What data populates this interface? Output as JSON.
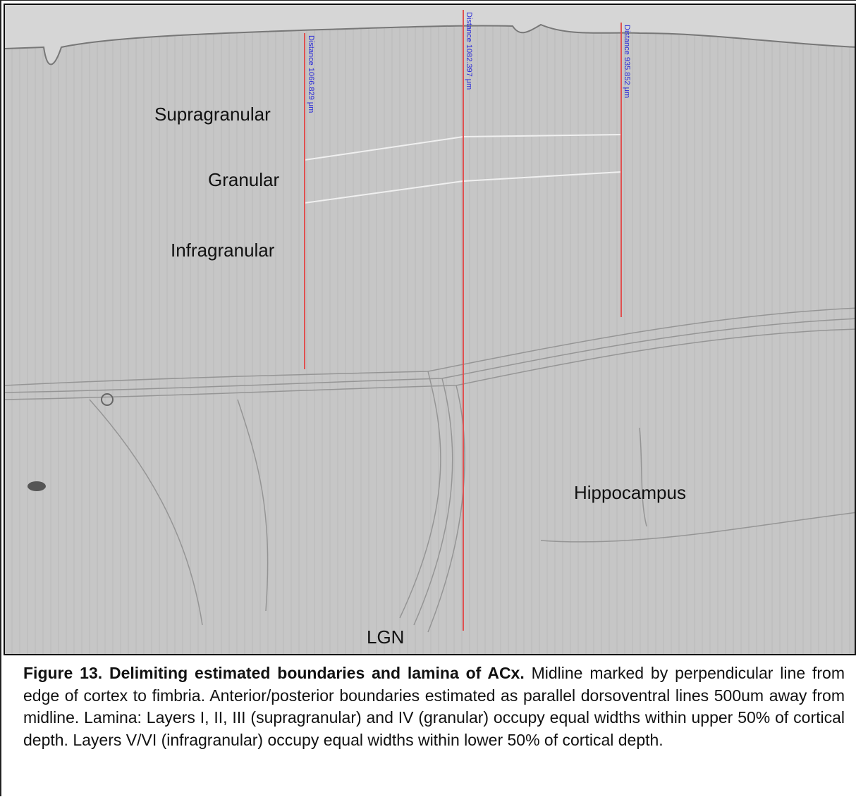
{
  "figure": {
    "labels": [
      "Supragranular",
      "Granular",
      "Infragranular",
      "Hippocampus",
      "LGN"
    ],
    "measurements": [
      "Distance 1066.829 μm",
      "Distance 1082.397 μm",
      "Distance 935.852 μm"
    ],
    "caption": {
      "title": "Figure 13. Delimiting estimated boundaries and lamina of ACx.",
      "body": "Midline marked by perpendicular line from edge of cortex to fimbria. Anterior/posterior boundaries estimated as parallel dorsoventral lines 500um away from midline. Lamina: Layers I, II, III (supragranular) and IV (granular) occupy equal widths within upper 50% of cortical depth. Layers V/VI (infragranular) occupy equal widths within lower 50% of cortical depth."
    }
  }
}
